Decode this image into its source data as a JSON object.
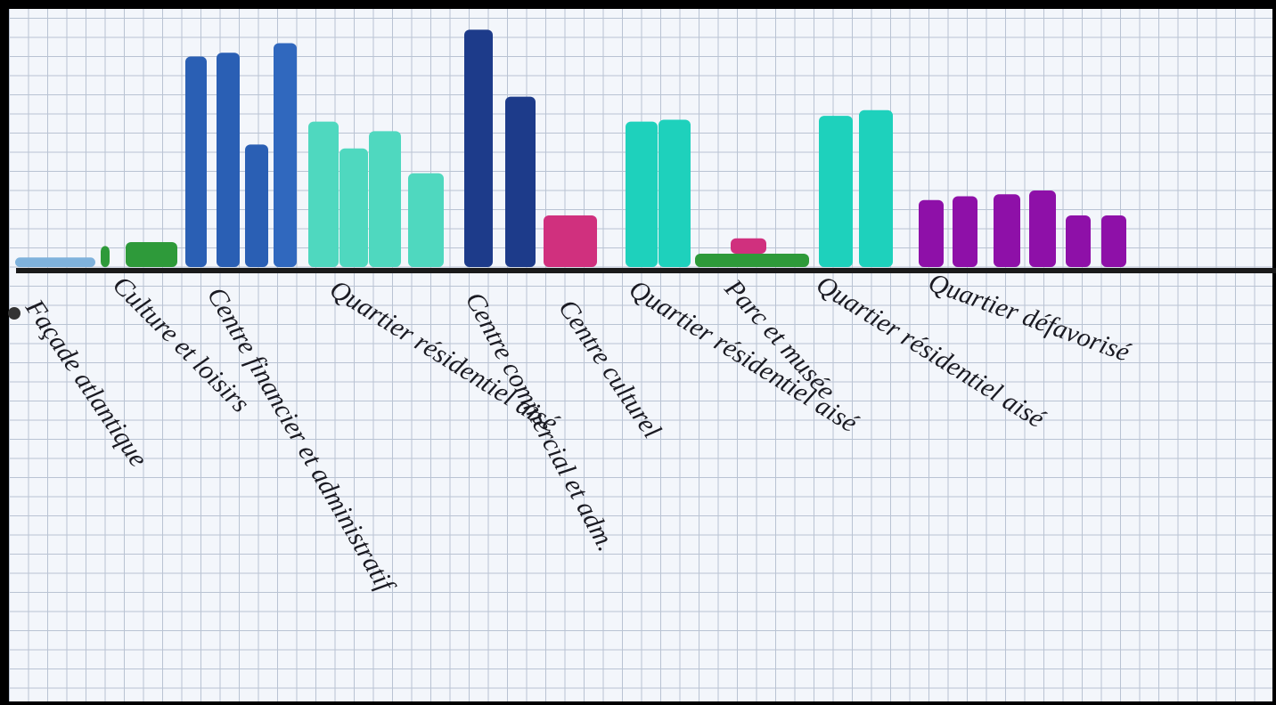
{
  "chart_data": {
    "type": "bar",
    "groups": [
      {
        "label": "Façade atlantique",
        "values": [
          0.5
        ],
        "colors": [
          "#7fb2dc"
        ]
      },
      {
        "label": "Culture et loisirs",
        "values": [
          1.1,
          1.3
        ],
        "colors": [
          "#2e9a3a",
          "#2e9a3a"
        ]
      },
      {
        "label": "Centre financier et administratif",
        "values": [
          11,
          11.2,
          6.4,
          11.7
        ],
        "colors": [
          "#2a5fb4",
          "#2a5fb4",
          "#2a5fb4",
          "#3068be"
        ]
      },
      {
        "label": "Quartier résidentiel aisé",
        "values": [
          7.6,
          6.2,
          7.1,
          4.9
        ],
        "colors": [
          "#4fd8bf",
          "#4fd8bf",
          "#4fd8bf",
          "#4fd8bf"
        ]
      },
      {
        "label": "Centre commercial et adm.",
        "values": [
          12.4,
          8.9
        ],
        "colors": [
          "#1d3b8a",
          "#1d3b8a"
        ]
      },
      {
        "label": "Centre culturel",
        "values": [
          2.7
        ],
        "colors": [
          "#d0307e"
        ]
      },
      {
        "label": "Quartier résidentiel aisé",
        "values": [
          7.6,
          7.7
        ],
        "colors": [
          "#1ed1bc",
          "#1ed1bc"
        ]
      },
      {
        "label": "Parc et musée",
        "values": [
          0.7,
          0.8
        ],
        "colors": [
          "#2e9a3a",
          "#d0307e"
        ],
        "stacked": true
      },
      {
        "label": "Quartier résidentiel aisé",
        "values": [
          7.9,
          8.2
        ],
        "colors": [
          "#1ed1bc",
          "#1ed1bc"
        ]
      },
      {
        "label": "Quartier défavorisé",
        "values": [
          3.5,
          3.7,
          3.8,
          4.0,
          2.7,
          2.7
        ],
        "colors": [
          "#8e10a8",
          "#8e10a8",
          "#8e10a8",
          "#8e10a8",
          "#8e10a8",
          "#8e10a8"
        ]
      }
    ]
  }
}
